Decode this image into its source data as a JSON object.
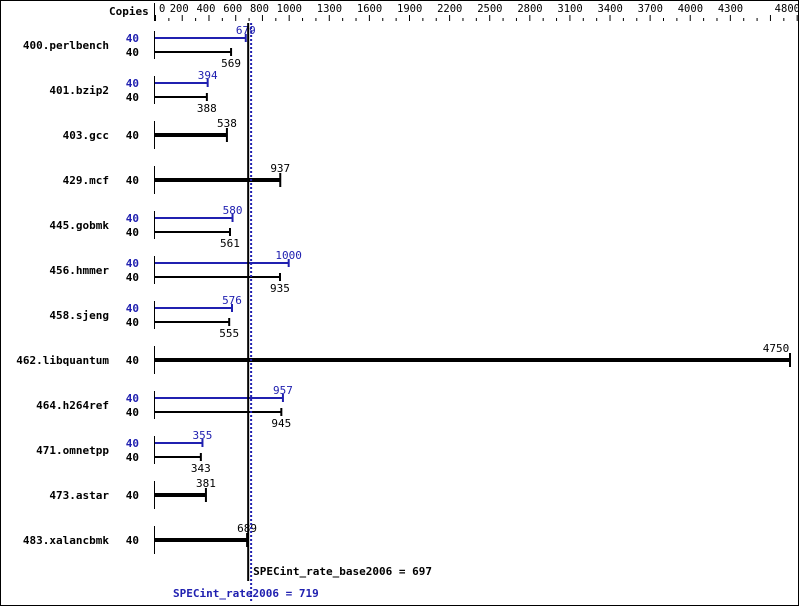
{
  "chart_data": {
    "type": "bar",
    "orientation": "horizontal",
    "header_label": "Copies",
    "xlim": [
      0,
      4800
    ],
    "tick_labels": [
      0,
      200,
      400,
      600,
      800,
      1000,
      1300,
      1600,
      1900,
      2200,
      2500,
      2800,
      3100,
      3400,
      3700,
      4000,
      4300,
      4800
    ],
    "colors": {
      "base": "#000000",
      "peak": "#2020b0"
    },
    "benchmarks": [
      {
        "name": "400.perlbench",
        "peak_copies": 40,
        "peak": 679,
        "base_copies": 40,
        "base": 569
      },
      {
        "name": "401.bzip2",
        "peak_copies": 40,
        "peak": 394,
        "base_copies": 40,
        "base": 388
      },
      {
        "name": "403.gcc",
        "base_copies": 40,
        "base": 538
      },
      {
        "name": "429.mcf",
        "base_copies": 40,
        "base": 937
      },
      {
        "name": "445.gobmk",
        "peak_copies": 40,
        "peak": 580,
        "base_copies": 40,
        "base": 561
      },
      {
        "name": "456.hmmer",
        "peak_copies": 40,
        "peak": 1000,
        "base_copies": 40,
        "base": 935
      },
      {
        "name": "458.sjeng",
        "peak_copies": 40,
        "peak": 576,
        "base_copies": 40,
        "base": 555
      },
      {
        "name": "462.libquantum",
        "base_copies": 40,
        "base": 4750
      },
      {
        "name": "464.h264ref",
        "peak_copies": 40,
        "peak": 957,
        "base_copies": 40,
        "base": 945
      },
      {
        "name": "471.omnetpp",
        "peak_copies": 40,
        "peak": 355,
        "base_copies": 40,
        "base": 343
      },
      {
        "name": "473.astar",
        "base_copies": 40,
        "base": 381
      },
      {
        "name": "483.xalancbmk",
        "base_copies": 40,
        "base": 689
      }
    ],
    "summary": {
      "base_label": "SPECint_rate_base2006 = 697",
      "base_value": 697,
      "peak_label": "SPECint_rate2006 = 719",
      "peak_value": 719
    }
  }
}
